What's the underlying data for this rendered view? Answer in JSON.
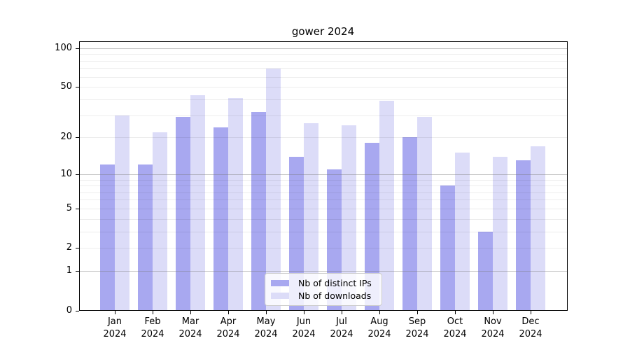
{
  "chart_data": {
    "type": "bar",
    "title": "gower 2024",
    "categories": [
      "Jan\n2024",
      "Feb\n2024",
      "Mar\n2024",
      "Apr\n2024",
      "May\n2024",
      "Jun\n2024",
      "Jul\n2024",
      "Aug\n2024",
      "Sep\n2024",
      "Oct\n2024",
      "Nov\n2024",
      "Dec\n2024"
    ],
    "series": [
      {
        "name": "Nb of distinct IPs",
        "color": "#a8a8f0",
        "values": [
          12,
          12,
          29,
          24,
          32,
          14,
          11,
          18,
          20,
          8,
          3,
          13
        ]
      },
      {
        "name": "Nb of downloads",
        "color": "#dcdcf8",
        "values": [
          30,
          22,
          43,
          41,
          69,
          26,
          25,
          39,
          29,
          15,
          14,
          17
        ]
      }
    ],
    "yscale": "log1p",
    "ylim": [
      0,
      100
    ],
    "y_ticks": [
      0,
      1,
      2,
      5,
      10,
      20,
      50,
      100
    ],
    "y_gridlines_major": [
      1,
      10,
      100
    ],
    "y_gridlines_minor": [
      2,
      3,
      4,
      5,
      6,
      7,
      8,
      9,
      20,
      30,
      40,
      50,
      60,
      70,
      80,
      90
    ],
    "grid": true,
    "legend_position": "lower center"
  },
  "colors": {
    "axis": "#000000",
    "major_grid": "#c3c3c3",
    "minor_grid": "#ececec",
    "legend_border": "#cccccc",
    "legend_background": "rgba(255,255,255,0.8)"
  }
}
